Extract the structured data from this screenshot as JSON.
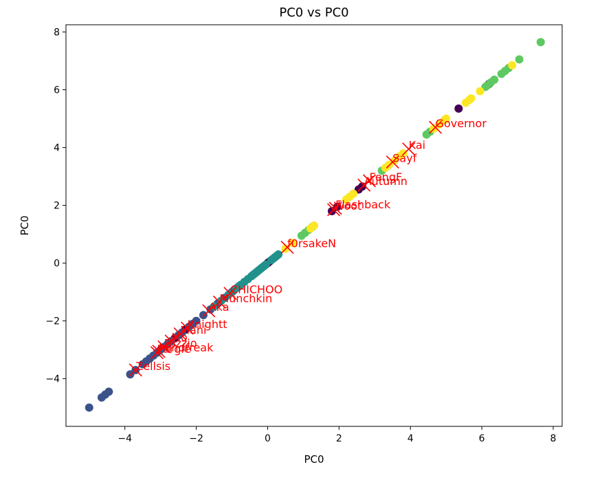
{
  "chart_data": {
    "type": "scatter",
    "title": "PC0 vs PC0",
    "xlabel": "PC0",
    "ylabel": "PC0",
    "xlim": [
      -5.65,
      8.25
    ],
    "ylim": [
      -5.65,
      8.25
    ],
    "xticks": [
      -4,
      -2,
      0,
      2,
      4,
      6,
      8
    ],
    "yticks": [
      -4,
      -2,
      0,
      2,
      4,
      6,
      8
    ],
    "grid": false,
    "colors": {
      "purple": "#440154",
      "blue": "#3b528b",
      "teal": "#21918c",
      "green": "#5ec962",
      "yellow": "#fde725",
      "marker": "#ff0000"
    },
    "series": [
      {
        "color": "purple",
        "values": [
          -2.6,
          -2.3,
          0.0,
          0.05,
          1.8,
          1.95,
          2.55,
          2.65,
          5.35,
          6.2
        ]
      },
      {
        "color": "blue",
        "values": [
          -5.0,
          -4.65,
          -4.55,
          -4.45,
          -3.85,
          -3.7,
          -3.5,
          -3.4,
          -3.3,
          -3.2,
          -3.1,
          -3.0,
          -2.9,
          -2.8,
          -2.7,
          -2.5,
          -2.4,
          -2.2,
          -2.1,
          -2.0,
          -1.8,
          -1.6,
          -1.4,
          -1.2,
          -1.0,
          -0.8
        ]
      },
      {
        "color": "teal",
        "values": [
          -1.5,
          -1.3,
          -1.1,
          -0.95,
          -0.85,
          -0.75,
          -0.65,
          -0.55,
          -0.45,
          -0.4,
          -0.35,
          -0.3,
          -0.25,
          -0.2,
          -0.15,
          -0.1,
          -0.05,
          0.1,
          0.15,
          0.2,
          0.25,
          0.3
        ]
      },
      {
        "color": "green",
        "values": [
          0.95,
          1.05,
          1.15,
          1.25,
          3.2,
          4.45,
          4.55,
          6.1,
          6.15,
          6.25,
          6.35,
          6.55,
          6.65,
          6.75,
          7.05,
          7.65
        ]
      },
      {
        "color": "yellow",
        "values": [
          0.5,
          0.7,
          1.2,
          1.3,
          2.2,
          2.3,
          2.4,
          3.3,
          3.4,
          3.55,
          3.7,
          3.8,
          4.65,
          4.8,
          4.95,
          5.0,
          5.55,
          5.65,
          5.7,
          5.95,
          6.85
        ]
      }
    ],
    "annotations": [
      {
        "label": "Governor",
        "x": 4.7,
        "y": 4.7
      },
      {
        "label": "Kai",
        "x": 3.95,
        "y": 3.95
      },
      {
        "label": "Sayf",
        "x": 3.5,
        "y": 3.5
      },
      {
        "label": "FengF",
        "x": 2.85,
        "y": 2.85
      },
      {
        "label": "Autumn",
        "x": 2.7,
        "y": 2.7
      },
      {
        "label": "Flashback",
        "x": 1.9,
        "y": 1.9
      },
      {
        "label": "Woot",
        "x": 1.85,
        "y": 1.85
      },
      {
        "label": "f0rsakeN",
        "x": 0.55,
        "y": 0.55
      },
      {
        "label": "CHICHOO",
        "x": -1.05,
        "y": -1.05
      },
      {
        "label": "Munchkin",
        "x": -1.35,
        "y": -1.35
      },
      {
        "label": "Aka",
        "x": -1.65,
        "y": -1.65
      },
      {
        "label": "Knightt",
        "x": -2.25,
        "y": -2.25
      },
      {
        "label": "Mahi",
        "x": -2.45,
        "y": -2.45
      },
      {
        "label": "Mo",
        "x": -2.7,
        "y": -2.7
      },
      {
        "label": "Dizzio",
        "x": -2.9,
        "y": -2.9
      },
      {
        "label": "Mindfreak",
        "x": -3.05,
        "y": -3.05
      },
      {
        "label": "Furgle",
        "x": -3.1,
        "y": -3.1
      },
      {
        "label": "Zellsis",
        "x": -3.7,
        "y": -3.7
      }
    ]
  }
}
